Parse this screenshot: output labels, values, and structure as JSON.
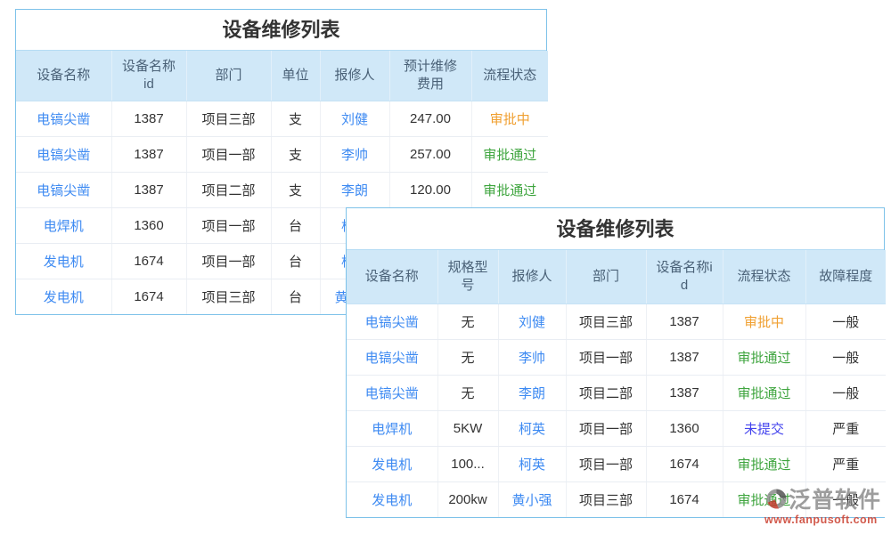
{
  "colors": {
    "table_border": "#7ec2e9",
    "header_bg": "#d0e8f8",
    "header_text": "#4a6177",
    "link_text": "#3d8af2",
    "status_colors": {
      "审批中": "#f0a032",
      "审批通过": "#3fa53f",
      "未提交": "#4444ee"
    }
  },
  "back_table": {
    "title": "设备维修列表",
    "columns": [
      {
        "key": "name",
        "label": "设备名称",
        "type": "link"
      },
      {
        "key": "id",
        "label": "设备名称id",
        "type": "text"
      },
      {
        "key": "dept",
        "label": "部门",
        "type": "text"
      },
      {
        "key": "unit",
        "label": "单位",
        "type": "text"
      },
      {
        "key": "reporter",
        "label": "报修人",
        "type": "link"
      },
      {
        "key": "cost",
        "label": "预计维修费用",
        "type": "text"
      },
      {
        "key": "status",
        "label": "流程状态",
        "type": "status"
      }
    ],
    "rows": [
      [
        "电镐尖凿",
        "1387",
        "项目三部",
        "支",
        "刘健",
        "247.00",
        "审批中"
      ],
      [
        "电镐尖凿",
        "1387",
        "项目一部",
        "支",
        "李帅",
        "257.00",
        "审批通过"
      ],
      [
        "电镐尖凿",
        "1387",
        "项目二部",
        "支",
        "李朗",
        "120.00",
        "审批通过"
      ],
      [
        "电焊机",
        "1360",
        "项目一部",
        "台",
        "柯英",
        "",
        ""
      ],
      [
        "发电机",
        "1674",
        "项目一部",
        "台",
        "柯英",
        "",
        ""
      ],
      [
        "发电机",
        "1674",
        "项目三部",
        "台",
        "黄小强",
        "",
        ""
      ]
    ]
  },
  "front_table": {
    "title": "设备维修列表",
    "columns": [
      {
        "key": "name",
        "label": "设备名称",
        "type": "link"
      },
      {
        "key": "spec",
        "label": "规格型号",
        "type": "text"
      },
      {
        "key": "reporter",
        "label": "报修人",
        "type": "link"
      },
      {
        "key": "dept",
        "label": "部门",
        "type": "text"
      },
      {
        "key": "id",
        "label": "设备名称id",
        "type": "text"
      },
      {
        "key": "status",
        "label": "流程状态",
        "type": "status"
      },
      {
        "key": "severity",
        "label": "故障程度",
        "type": "text"
      }
    ],
    "rows": [
      [
        "电镐尖凿",
        "无",
        "刘健",
        "项目三部",
        "1387",
        "审批中",
        "一般"
      ],
      [
        "电镐尖凿",
        "无",
        "李帅",
        "项目一部",
        "1387",
        "审批通过",
        "一般"
      ],
      [
        "电镐尖凿",
        "无",
        "李朗",
        "项目二部",
        "1387",
        "审批通过",
        "一般"
      ],
      [
        "电焊机",
        "5KW",
        "柯英",
        "项目一部",
        "1360",
        "未提交",
        "严重"
      ],
      [
        "发电机",
        "100...",
        "柯英",
        "项目一部",
        "1674",
        "审批通过",
        "严重"
      ],
      [
        "发电机",
        "200kw",
        "黄小强",
        "项目三部",
        "1674",
        "审批通过",
        "一般"
      ]
    ]
  },
  "watermark": {
    "brand": "泛普软件",
    "url": "www.fanpusoft.com",
    "logo": "fanpu-logo-icon",
    "brand_color": "#828282",
    "url_color": "#cd4838"
  }
}
